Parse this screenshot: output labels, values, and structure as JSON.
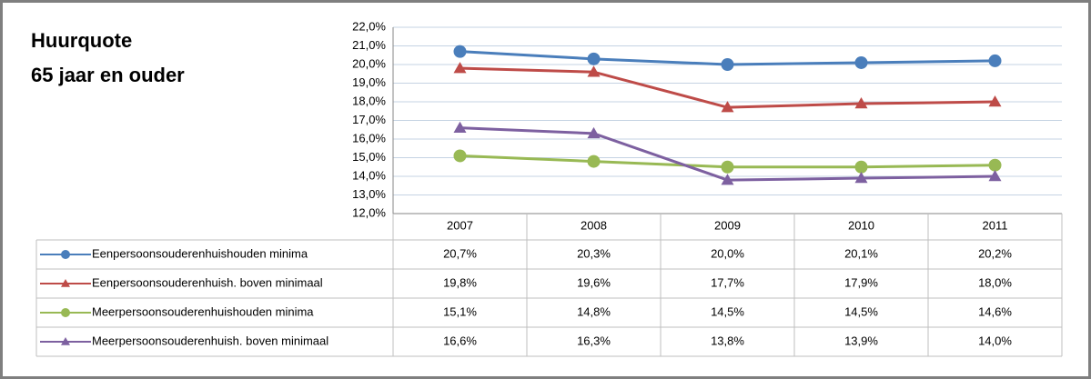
{
  "chart_data": {
    "type": "line",
    "title": "Huurquote",
    "subtitle": "65 jaar en ouder",
    "categories": [
      "2007",
      "2008",
      "2009",
      "2010",
      "2011"
    ],
    "series": [
      {
        "name": "Eenpersoonsouderenhuishouden  minima",
        "color": "#4a7ebb",
        "marker": "circle",
        "values": [
          20.7,
          20.3,
          20.0,
          20.1,
          20.2
        ],
        "value_labels": [
          "20,7%",
          "20,3%",
          "20,0%",
          "20,1%",
          "20,2%"
        ]
      },
      {
        "name": "Eenpersoonsouderenhuish. boven minimaal",
        "color": "#be4b48",
        "marker": "triangle",
        "values": [
          19.8,
          19.6,
          17.7,
          17.9,
          18.0
        ],
        "value_labels": [
          "19,8%",
          "19,6%",
          "17,7%",
          "17,9%",
          "18,0%"
        ]
      },
      {
        "name": "Meerpersoonsouderenhuishouden  minima",
        "color": "#98b954",
        "marker": "circle",
        "values": [
          15.1,
          14.8,
          14.5,
          14.5,
          14.6
        ],
        "value_labels": [
          "15,1%",
          "14,8%",
          "14,5%",
          "14,5%",
          "14,6%"
        ]
      },
      {
        "name": "Meerpersoonsouderenhuish. boven minimaal",
        "color": "#7d60a0",
        "marker": "triangle",
        "values": [
          16.6,
          16.3,
          13.8,
          13.9,
          14.0
        ],
        "value_labels": [
          "16,6%",
          "16,3%",
          "13,8%",
          "13,9%",
          "14,0%"
        ]
      }
    ],
    "ylim": [
      12,
      22
    ],
    "yticks": [
      {
        "value": 12,
        "label": "12,0%"
      },
      {
        "value": 13,
        "label": "13,0%"
      },
      {
        "value": 14,
        "label": "14,0%"
      },
      {
        "value": 15,
        "label": "15,0%"
      },
      {
        "value": 16,
        "label": "16,0%"
      },
      {
        "value": 17,
        "label": "17,0%"
      },
      {
        "value": 18,
        "label": "18,0%"
      },
      {
        "value": 19,
        "label": "19,0%"
      },
      {
        "value": 20,
        "label": "20,0%"
      },
      {
        "value": 21,
        "label": "21,0%"
      },
      {
        "value": 22,
        "label": "22,0%"
      }
    ],
    "grid": true
  }
}
